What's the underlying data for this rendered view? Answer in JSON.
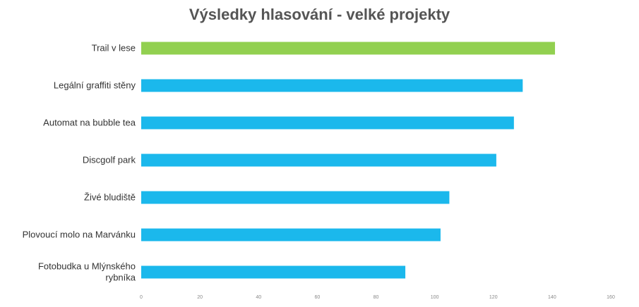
{
  "chart_data": {
    "type": "bar",
    "orientation": "horizontal",
    "title": "Výsledky hlasování - velké projekty",
    "xlabel": "",
    "ylabel": "",
    "xlim": [
      0,
      160
    ],
    "ticks": [
      "0",
      "20",
      "40",
      "60",
      "80",
      "100",
      "120",
      "140",
      "160"
    ],
    "grid": false,
    "categories": [
      [
        "Trail v lese"
      ],
      [
        "Legální graffiti stěny"
      ],
      [
        "Automat na bubble tea"
      ],
      [
        "Discgolf park"
      ],
      [
        "Živé bludiště"
      ],
      [
        "Plovoucí molo na Marvánku"
      ],
      [
        "Fotobudka u Mlýnského",
        "rybníka"
      ]
    ],
    "values": [
      141,
      130,
      127,
      121,
      105,
      102,
      90
    ],
    "colors": [
      "#92D050",
      "#1BB8EC",
      "#1BB8EC",
      "#1BB8EC",
      "#1BB8EC",
      "#1BB8EC",
      "#1BB8EC"
    ]
  }
}
